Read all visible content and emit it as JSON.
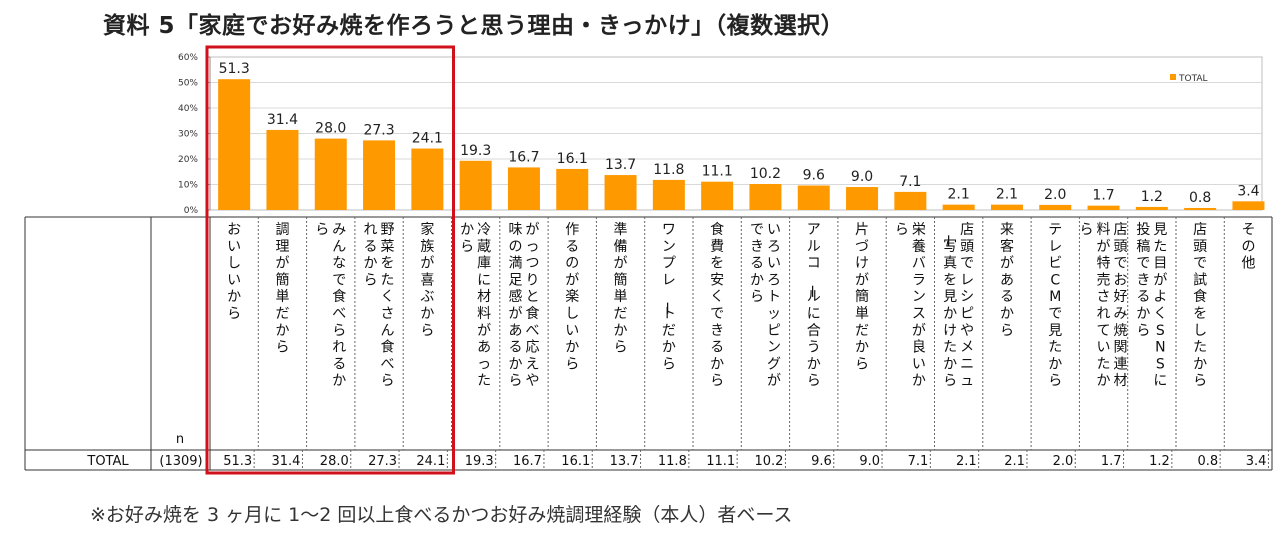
{
  "title": "資料 5「家庭でお好み焼を作ろうと思う理由・きっかけ」（複数選択）",
  "footnote": "※お好み焼を 3 ヶ月に 1～2 回以上食べるかつお好み焼調理経験（本人）者ベース",
  "colors": {
    "bar": "#FF9900",
    "highlight": "#D0101A",
    "grid": "#D9D9D9"
  },
  "chart_data": {
    "type": "bar",
    "legend": [
      "TOTAL"
    ],
    "legend_position": "top-right",
    "ylim": [
      0,
      60
    ],
    "yticks": [
      "0%",
      "10%",
      "20%",
      "30%",
      "40%",
      "50%",
      "60%"
    ],
    "grid": true,
    "categories": [
      "おいしいから",
      "調理が簡単だから",
      "みんなで食べられるから",
      "野菜をたくさん食べられるから",
      "家族が喜ぶから",
      "冷蔵庫に材料があったから",
      "がっつりと食べ応えや味の満足感があるから",
      "作るのが楽しいから",
      "準備が簡単だから",
      "ワンプレートだから",
      "食費を安くできるから",
      "いろいろトッピングができるから",
      "アルコールに合うから",
      "片づけが簡単だから",
      "栄養バランスが良いから",
      "店頭でレシピやメニュー写真を見かけたから",
      "来客があるから",
      "テレビCMで見たから",
      "店頭でお好み焼関連材料が特売されていたから",
      "見た目がよくSNSに投稿できるから",
      "店頭で試食をしたから",
      "その他"
    ],
    "series": [
      {
        "name": "TOTAL",
        "values": [
          51.3,
          31.4,
          28.0,
          27.3,
          24.1,
          19.3,
          16.7,
          16.1,
          13.7,
          11.8,
          11.1,
          10.2,
          9.6,
          9.0,
          7.1,
          2.1,
          2.1,
          2.0,
          1.7,
          1.2,
          0.8,
          3.4
        ]
      }
    ],
    "labels": [
      "51.3",
      "31.4",
      "28.0",
      "27.3",
      "24.1",
      "19.3",
      "16.7",
      "16.1",
      "13.7",
      "11.8",
      "11.1",
      "10.2",
      "9.6",
      "9.0",
      "7.1",
      "2.1",
      "2.1",
      "2.0",
      "1.7",
      "1.2",
      "0.8",
      "3.4"
    ],
    "table": {
      "n_header": "n",
      "row_label": "TOTAL",
      "n": "(1309)"
    },
    "highlighted_range": [
      1,
      5
    ]
  }
}
